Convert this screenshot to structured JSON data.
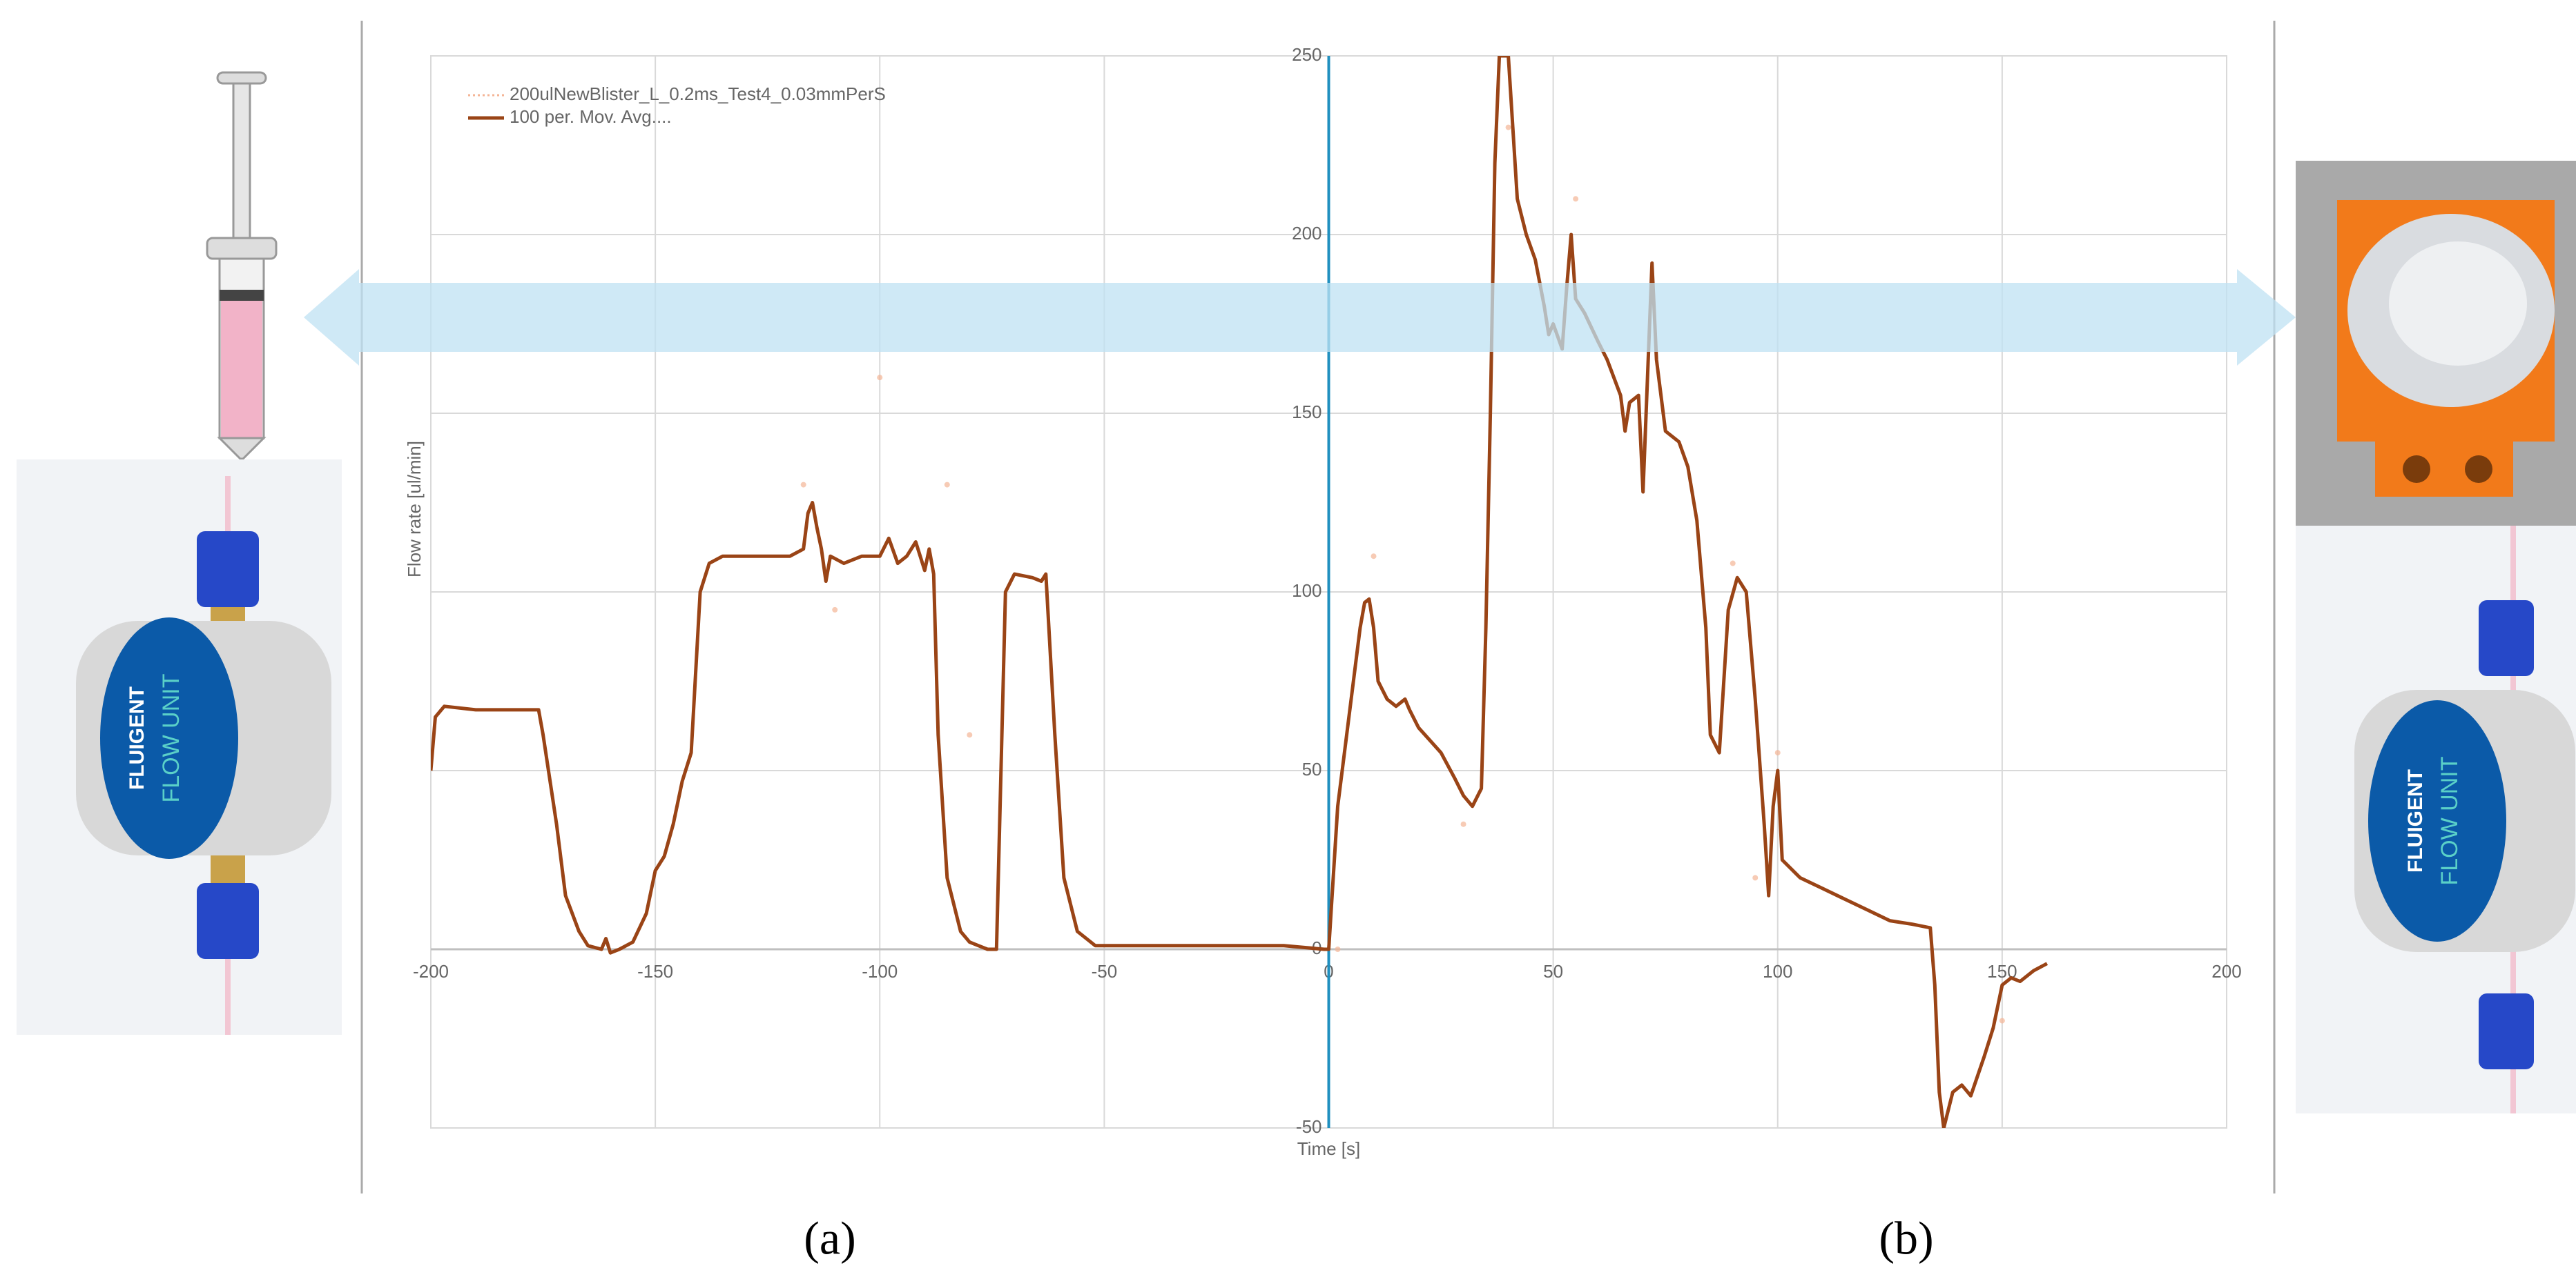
{
  "chart_data": {
    "type": "line",
    "x_label": "Time [s]",
    "y_label": "Flow rate [ul/min]",
    "xlim": [
      -200,
      200
    ],
    "xticks": [
      -200,
      -150,
      -100,
      -50,
      0,
      50,
      100,
      150,
      200
    ],
    "ylim": [
      -50,
      250
    ],
    "yticks": [
      -50,
      0,
      50,
      100,
      150,
      200,
      250
    ],
    "grid": true,
    "legend": "upper left",
    "series": [
      {
        "name": "200ulNewBlister_L_0.2ms_Test4_0.03mmPerS",
        "color": "#f4b596",
        "x": [
          -117,
          -110,
          -100,
          -85,
          -80,
          2,
          10,
          30,
          40,
          55,
          90,
          95,
          100,
          150
        ],
        "values": [
          130,
          95,
          160,
          130,
          60,
          0,
          110,
          35,
          230,
          210,
          108,
          20,
          55,
          -20
        ]
      },
      {
        "name": "100 per. Mov. Avg....",
        "color": "#9a4416",
        "x": [
          -200,
          -199,
          -197,
          -190,
          -180,
          -176,
          -175,
          -172,
          -170,
          -167,
          -165,
          -162,
          -161,
          -160,
          -158,
          -155,
          -152,
          -150,
          -148,
          -146,
          -144,
          -142,
          -140,
          -138,
          -135,
          -130,
          -120,
          -117,
          -116,
          -115,
          -114,
          -113,
          -112,
          -111,
          -108,
          -104,
          -100,
          -98,
          -96,
          -94,
          -92,
          -90,
          -89,
          -88,
          -87,
          -85,
          -82,
          -80,
          -78,
          -76,
          -74,
          -73,
          -72,
          -70,
          -66,
          -64,
          -63,
          -61,
          -59,
          -56,
          -52,
          -45,
          -30,
          -20,
          -10,
          -1,
          0,
          1,
          2,
          4,
          6,
          7,
          8,
          9,
          10,
          11,
          13,
          15,
          17,
          18,
          20,
          25,
          28,
          30,
          32,
          34,
          35,
          36,
          37,
          38,
          40,
          41,
          42,
          44,
          46,
          48,
          49,
          50,
          52,
          53,
          54,
          55,
          57,
          60,
          62,
          65,
          66,
          67,
          69,
          70,
          71,
          72,
          73,
          75,
          78,
          80,
          82,
          84,
          85,
          87,
          89,
          91,
          93,
          95,
          97,
          98,
          99,
          100,
          101,
          105,
          110,
          115,
          120,
          125,
          130,
          134,
          135,
          136,
          137,
          139,
          141,
          143,
          146,
          148,
          150,
          152,
          154,
          157,
          160
        ],
        "values": [
          50,
          65,
          68,
          67,
          67,
          67,
          60,
          35,
          15,
          5,
          1,
          0,
          3,
          -1,
          0,
          2,
          10,
          22,
          26,
          35,
          47,
          55,
          100,
          108,
          110,
          110,
          110,
          112,
          122,
          125,
          118,
          112,
          103,
          110,
          108,
          110,
          110,
          115,
          108,
          110,
          114,
          106,
          112,
          105,
          60,
          20,
          5,
          2,
          1,
          0,
          0,
          50,
          100,
          105,
          104,
          103,
          105,
          60,
          20,
          5,
          1,
          1,
          1,
          1,
          1,
          0,
          0,
          20,
          40,
          60,
          80,
          90,
          97,
          98,
          90,
          75,
          70,
          68,
          70,
          67,
          62,
          55,
          48,
          43,
          40,
          45,
          90,
          150,
          220,
          250,
          250,
          230,
          210,
          200,
          193,
          180,
          172,
          175,
          168,
          185,
          200,
          182,
          178,
          170,
          165,
          155,
          145,
          153,
          155,
          128,
          160,
          192,
          165,
          145,
          142,
          135,
          120,
          90,
          60,
          55,
          95,
          104,
          100,
          70,
          35,
          15,
          40,
          50,
          25,
          20,
          17,
          14,
          11,
          8,
          7,
          6,
          -10,
          -40,
          -50,
          -40,
          -38,
          -41,
          -30,
          -22,
          -10,
          -8,
          -9,
          -6,
          -4
        ]
      }
    ]
  },
  "panel_labels": [
    "(a)",
    "(b)"
  ],
  "device_labels": [
    "FLUIGENT",
    "FLOW UNIT"
  ]
}
